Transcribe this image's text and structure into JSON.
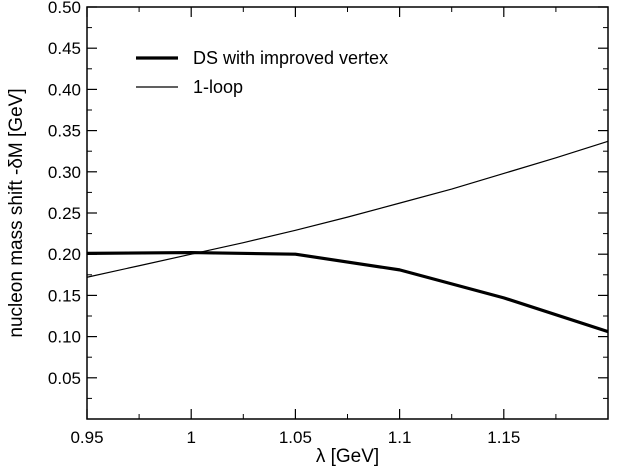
{
  "chart_data": {
    "type": "line",
    "xlabel": "λ [GeV]",
    "ylabel": "nucleon mass shift   -δM [GeV]",
    "xlim": [
      0.95,
      1.2
    ],
    "ylim": [
      0.0,
      0.5
    ],
    "x_ticks": [
      "0.95",
      "1",
      "1.05",
      "1.1",
      "1.15"
    ],
    "y_ticks": [
      "0.05",
      "0.10",
      "0.15",
      "0.20",
      "0.25",
      "0.30",
      "0.35",
      "0.40",
      "0.45",
      "0.50"
    ],
    "grid": false,
    "legend_position": "top-left",
    "series": [
      {
        "name": "DS with improved vertex",
        "line_weight": "thick",
        "color": "#000000",
        "x": [
          0.95,
          1.0,
          1.05,
          1.1,
          1.15,
          1.2
        ],
        "y": [
          0.201,
          0.202,
          0.2,
          0.181,
          0.147,
          0.106
        ]
      },
      {
        "name": "1-loop",
        "line_weight": "thin",
        "color": "#000000",
        "x": [
          0.95,
          0.975,
          1.0,
          1.025,
          1.05,
          1.075,
          1.1,
          1.125,
          1.15,
          1.175,
          1.2
        ],
        "y": [
          0.172,
          0.186,
          0.2,
          0.214,
          0.229,
          0.245,
          0.262,
          0.279,
          0.298,
          0.317,
          0.337
        ]
      }
    ]
  }
}
